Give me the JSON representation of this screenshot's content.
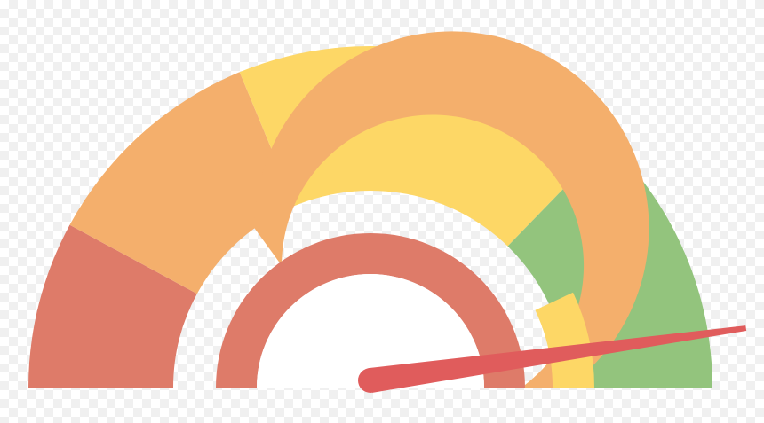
{
  "gauge": {
    "segments": [
      {
        "name": "low",
        "color": "#de7b69",
        "from": 0.0,
        "to": 0.158
      },
      {
        "name": "medium-low",
        "color": "#f4af6c",
        "from": 0.158,
        "to": 0.375
      },
      {
        "name": "medium",
        "color": "#fdd766",
        "from": 0.375,
        "to": 0.745
      },
      {
        "name": "high",
        "color": "#93c47d",
        "from": 0.745,
        "to": 1.0
      }
    ],
    "inner_bands": [
      {
        "name": "inner-yellow-band",
        "color": "#fdd766"
      },
      {
        "name": "inner-orange-band",
        "color": "#f4af6c"
      },
      {
        "name": "inner-red-band",
        "color": "#de7b69"
      }
    ],
    "needle": {
      "color": "#e05c5c",
      "value": 0.95
    }
  }
}
